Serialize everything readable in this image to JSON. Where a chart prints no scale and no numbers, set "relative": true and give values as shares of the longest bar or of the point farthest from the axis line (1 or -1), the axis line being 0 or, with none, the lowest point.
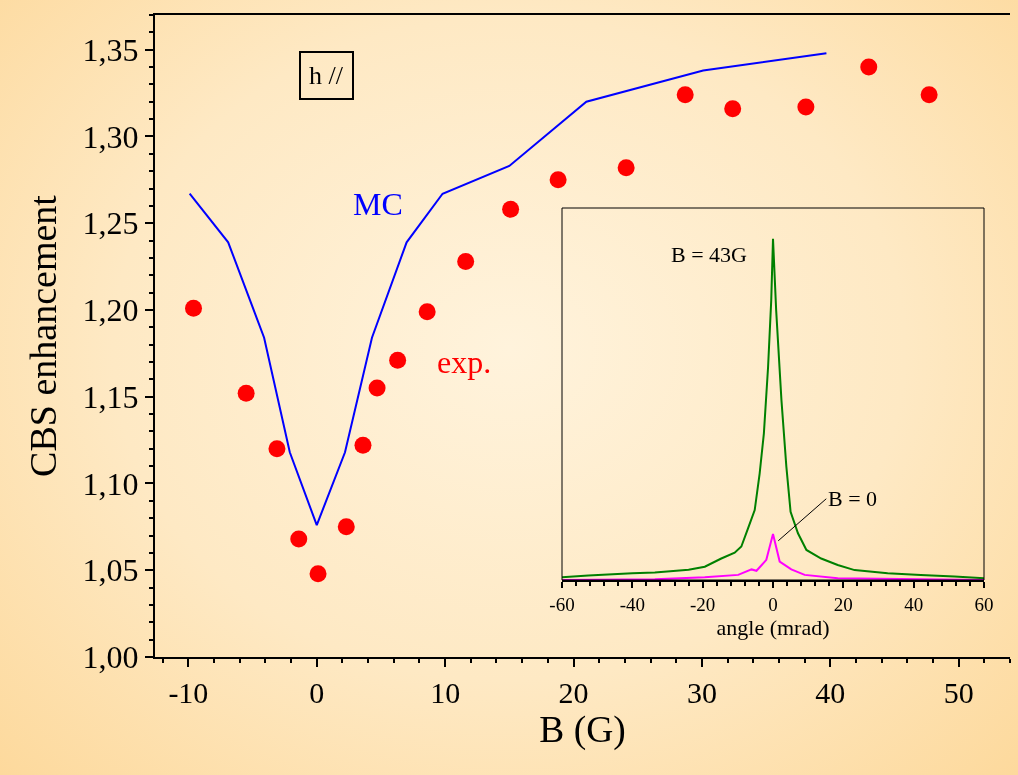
{
  "chart_data": [
    {
      "type": "scatter",
      "xlabel": "B (G)",
      "ylabel": "CBS enhancement",
      "annotations": [
        "h //"
      ],
      "xlim": [
        -12.6,
        54
      ],
      "xticks": [
        -10,
        0,
        10,
        20,
        30,
        40,
        50
      ],
      "ylim": [
        1.0,
        1.37
      ],
      "yticks": [
        {
          "value": 1.0,
          "label": "1,00"
        },
        {
          "value": 1.05,
          "label": "1,05"
        },
        {
          "value": 1.1,
          "label": "1,10"
        },
        {
          "value": 1.15,
          "label": "1,15"
        },
        {
          "value": 1.2,
          "label": "1,20"
        },
        {
          "value": 1.25,
          "label": "1,25"
        },
        {
          "value": 1.3,
          "label": "1,30"
        },
        {
          "value": 1.35,
          "label": "1,35"
        }
      ],
      "grid": false,
      "legend": false,
      "series": [
        {
          "name": "MC",
          "type": "line",
          "color": "#0000ff",
          "marker": "none",
          "x": [
            -9.9,
            -6.9,
            -4.1,
            -2.1,
            0,
            2.2,
            4.3,
            7.0,
            9.8,
            15.0,
            21.0,
            30.1,
            39.7
          ],
          "values": [
            1.267,
            1.239,
            1.184,
            1.118,
            1.076,
            1.118,
            1.184,
            1.239,
            1.267,
            1.283,
            1.32,
            1.338,
            1.348
          ]
        },
        {
          "name": "exp.",
          "type": "scatter",
          "color": "#ff0000",
          "marker": "circle",
          "x": [
            -9.6,
            -5.5,
            -3.1,
            -1.4,
            0.1,
            2.3,
            3.6,
            4.7,
            6.3,
            8.6,
            11.6,
            15.1,
            18.8,
            24.1,
            28.7,
            32.4,
            38.1,
            43.0,
            47.7
          ],
          "values": [
            1.201,
            1.152,
            1.12,
            1.068,
            1.048,
            1.075,
            1.122,
            1.155,
            1.171,
            1.199,
            1.228,
            1.258,
            1.275,
            1.282,
            1.324,
            1.316,
            1.317,
            1.34,
            1.324
          ]
        }
      ]
    },
    {
      "type": "line",
      "xlabel": "angle (mrad)",
      "relative": true,
      "xlim": [
        -60,
        60
      ],
      "xticks": [
        -60,
        -40,
        -20,
        0,
        20,
        40,
        60
      ],
      "grid": false,
      "legend": false,
      "series": [
        {
          "name": "B = 43G",
          "color": "#008000",
          "x": [
            -60,
            -52.5,
            -40,
            -33.6,
            -24,
            -19.4,
            -14.7,
            -10.9,
            -9,
            -7.1,
            -5.2,
            -3.8,
            -2.6,
            -1.4,
            -0.5,
            0,
            0.9,
            2.4,
            3.8,
            5,
            7.1,
            9.5,
            13.7,
            18.4,
            23.2,
            32.6,
            42,
            51.6,
            60
          ],
          "values": [
            0.008,
            0.013,
            0.02,
            0.022,
            0.03,
            0.039,
            0.063,
            0.08,
            0.098,
            0.151,
            0.205,
            0.312,
            0.429,
            0.624,
            0.82,
            1,
            0.79,
            0.527,
            0.332,
            0.2,
            0.137,
            0.088,
            0.063,
            0.044,
            0.029,
            0.02,
            0.015,
            0.01,
            0.005
          ]
        },
        {
          "name": "B = 0",
          "color": "#ff00ff",
          "x": [
            -60,
            -33.6,
            -19.4,
            -9.9,
            -6.1,
            -4.7,
            -1.9,
            0,
            1.9,
            5.2,
            9,
            18.4,
            60
          ],
          "values": [
            0,
            0.002,
            0.008,
            0.015,
            0.031,
            0.027,
            0.059,
            0.135,
            0.054,
            0.031,
            0.015,
            0.005,
            0
          ]
        }
      ]
    }
  ]
}
